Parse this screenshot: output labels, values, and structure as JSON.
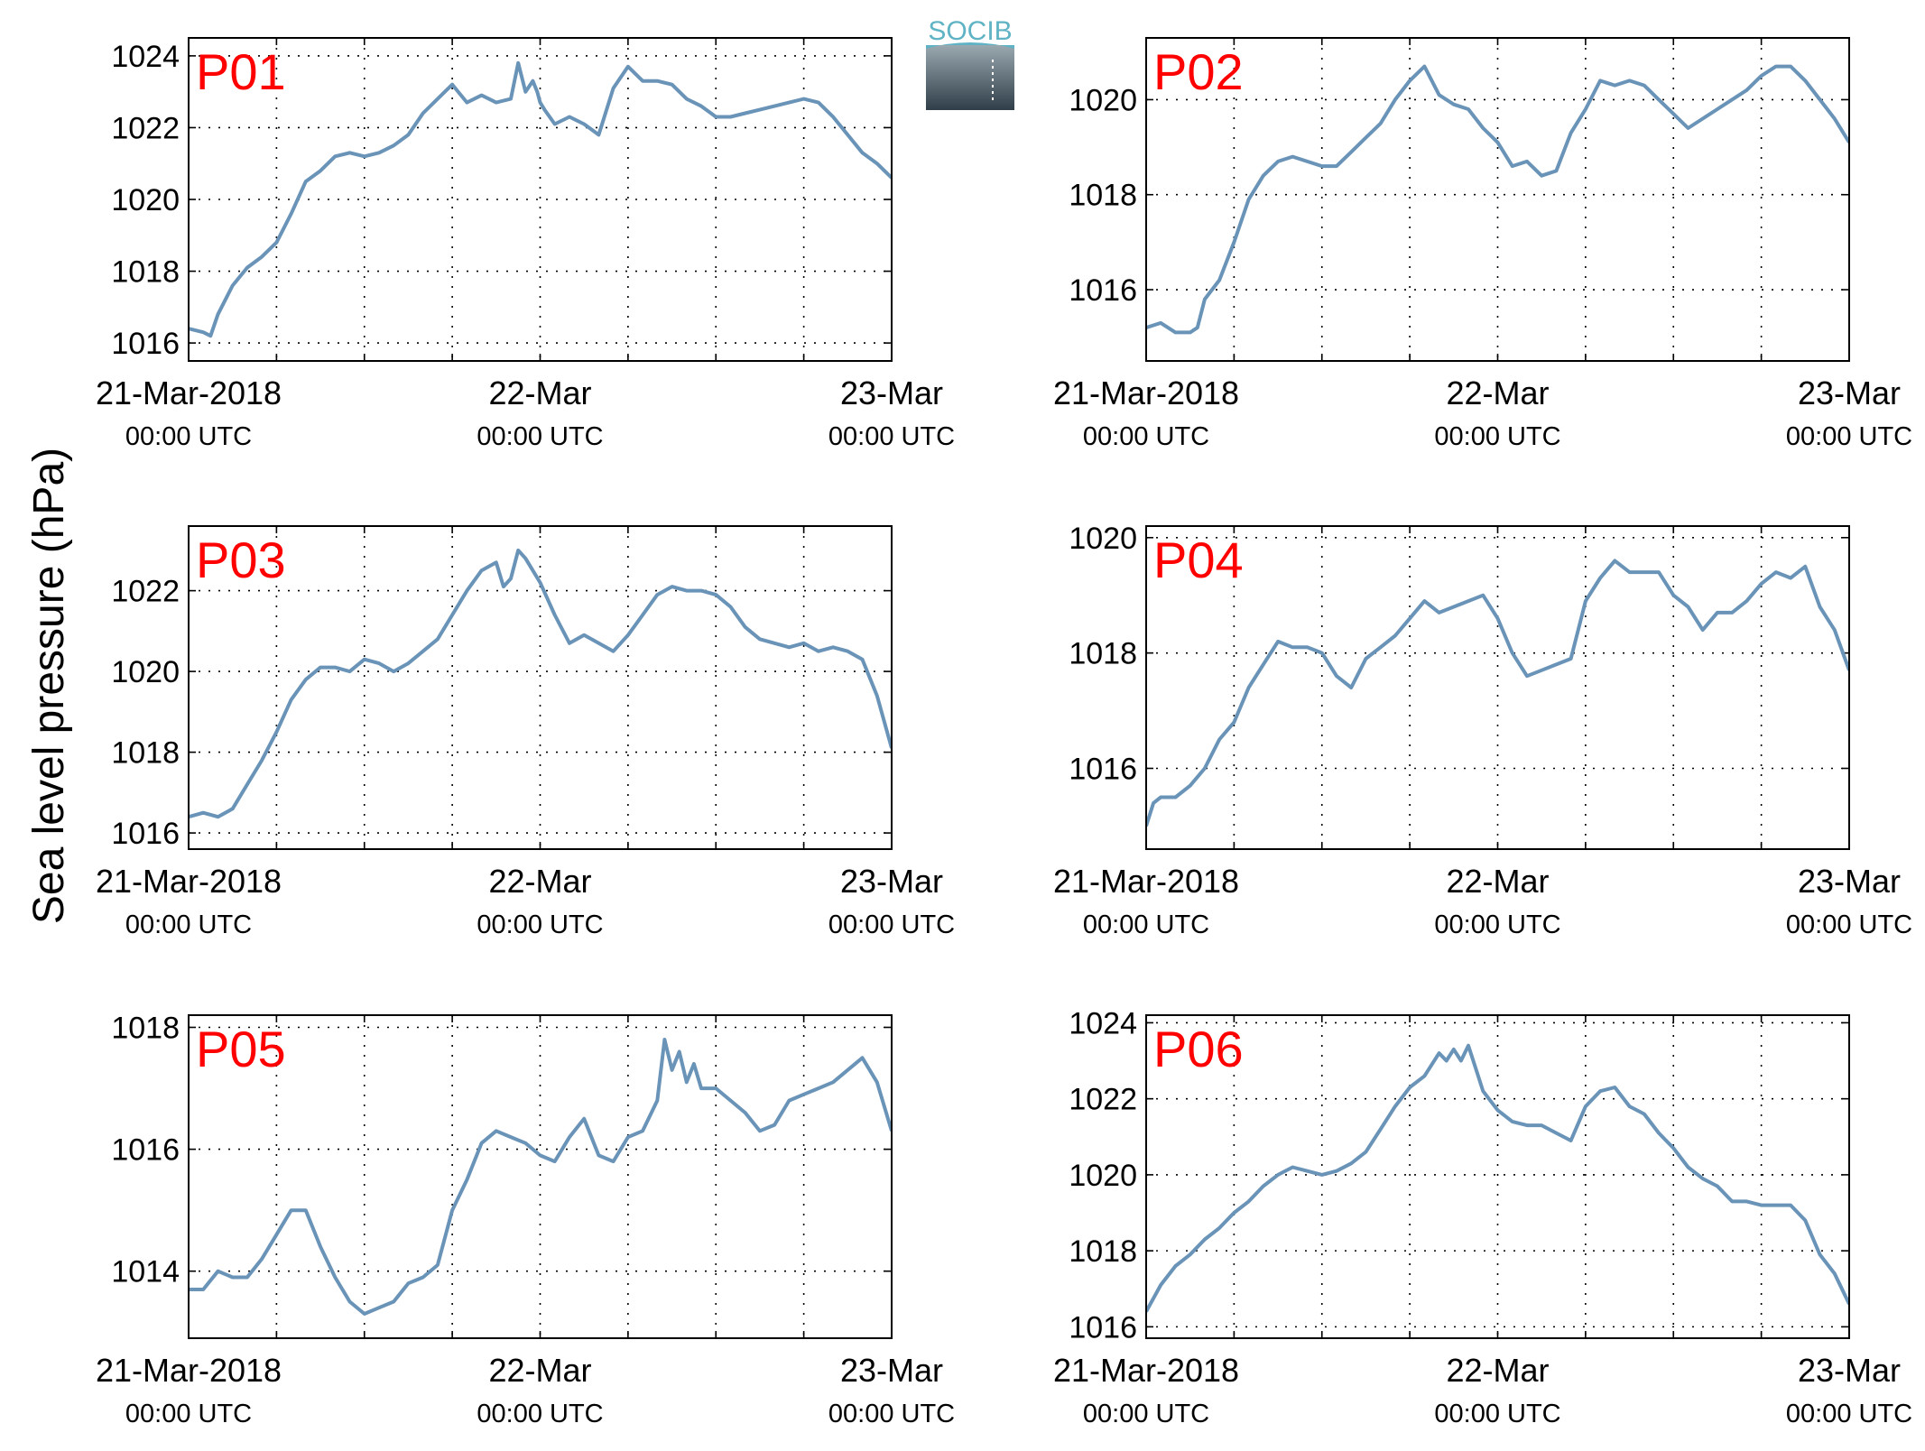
{
  "figure": {
    "ylabel": "Sea level pressure (hPa)",
    "logo_text": "SOCIB"
  },
  "colors": {
    "line": "#6a93b8",
    "panel_label": "#ff0000",
    "axis": "#000000",
    "grid": "#000000"
  },
  "chart_data": [
    {
      "type": "line",
      "name": "P01",
      "xlim": [
        0,
        48
      ],
      "ylim": [
        1015.5,
        1024.5
      ],
      "yticks": [
        1016,
        1018,
        1020,
        1022,
        1024
      ],
      "xticklabels": [
        {
          "t": 0,
          "top": "21-Mar-2018",
          "bottom": "00:00 UTC"
        },
        {
          "t": 24,
          "top": "22-Mar",
          "bottom": "00:00 UTC"
        },
        {
          "t": 48,
          "top": "23-Mar",
          "bottom": "00:00 UTC"
        }
      ],
      "grid": true,
      "x": [
        0,
        1,
        1.5,
        2,
        3,
        4,
        5,
        6,
        7,
        8,
        9,
        10,
        11,
        12,
        13,
        14,
        15,
        16,
        17,
        18,
        19,
        20,
        21,
        22,
        22.5,
        23,
        23.5,
        23.8,
        24,
        24.3,
        25,
        26,
        27,
        28,
        29,
        30,
        31,
        32,
        33,
        34,
        35,
        36,
        37,
        38,
        39,
        40,
        41,
        42,
        43,
        44,
        45,
        46,
        47,
        48
      ],
      "values": [
        1016.4,
        1016.3,
        1016.2,
        1016.8,
        1017.6,
        1018.1,
        1018.4,
        1018.8,
        1019.6,
        1020.5,
        1020.8,
        1021.2,
        1021.3,
        1021.2,
        1021.3,
        1021.5,
        1021.8,
        1022.4,
        1022.8,
        1023.2,
        1022.7,
        1022.9,
        1022.7,
        1022.8,
        1023.8,
        1023.0,
        1023.3,
        1023.0,
        1022.7,
        1022.5,
        1022.1,
        1022.3,
        1022.1,
        1021.8,
        1023.1,
        1023.7,
        1023.3,
        1023.3,
        1023.2,
        1022.8,
        1022.6,
        1022.3,
        1022.3,
        1022.4,
        1022.5,
        1022.6,
        1022.7,
        1022.8,
        1022.7,
        1022.3,
        1021.8,
        1021.3,
        1021.0,
        1020.6
      ]
    },
    {
      "type": "line",
      "name": "P02",
      "xlim": [
        0,
        48
      ],
      "ylim": [
        1014.5,
        1021.3
      ],
      "yticks": [
        1016,
        1018,
        1020
      ],
      "xticklabels": [
        {
          "t": 0,
          "top": "21-Mar-2018",
          "bottom": "00:00 UTC"
        },
        {
          "t": 24,
          "top": "22-Mar",
          "bottom": "00:00 UTC"
        },
        {
          "t": 48,
          "top": "23-Mar",
          "bottom": "00:00 UTC"
        }
      ],
      "grid": true,
      "x": [
        0,
        1,
        2,
        3,
        3.5,
        4,
        5,
        6,
        7,
        8,
        9,
        10,
        11,
        12,
        13,
        14,
        15,
        16,
        17,
        18,
        19,
        20,
        21,
        22,
        23,
        24,
        25,
        26,
        27,
        28,
        29,
        30,
        31,
        32,
        33,
        34,
        35,
        36,
        37,
        38,
        39,
        40,
        41,
        42,
        43,
        44,
        45,
        46,
        47,
        48
      ],
      "values": [
        1015.2,
        1015.3,
        1015.1,
        1015.1,
        1015.2,
        1015.8,
        1016.2,
        1017.0,
        1017.9,
        1018.4,
        1018.7,
        1018.8,
        1018.7,
        1018.6,
        1018.6,
        1018.9,
        1019.2,
        1019.5,
        1020.0,
        1020.4,
        1020.7,
        1020.1,
        1019.9,
        1019.8,
        1019.4,
        1019.1,
        1018.6,
        1018.7,
        1018.4,
        1018.5,
        1019.3,
        1019.8,
        1020.4,
        1020.3,
        1020.4,
        1020.3,
        1020.0,
        1019.7,
        1019.4,
        1019.6,
        1019.8,
        1020.0,
        1020.2,
        1020.5,
        1020.7,
        1020.7,
        1020.4,
        1020.0,
        1019.6,
        1019.1
      ]
    },
    {
      "type": "line",
      "name": "P03",
      "xlim": [
        0,
        48
      ],
      "ylim": [
        1015.6,
        1023.6
      ],
      "yticks": [
        1016,
        1018,
        1020,
        1022
      ],
      "xticklabels": [
        {
          "t": 0,
          "top": "21-Mar-2018",
          "bottom": "00:00 UTC"
        },
        {
          "t": 24,
          "top": "22-Mar",
          "bottom": "00:00 UTC"
        },
        {
          "t": 48,
          "top": "23-Mar",
          "bottom": "00:00 UTC"
        }
      ],
      "grid": true,
      "x": [
        0,
        1,
        2,
        3,
        4,
        5,
        6,
        7,
        8,
        9,
        10,
        11,
        12,
        13,
        14,
        15,
        16,
        17,
        18,
        19,
        20,
        21,
        21.5,
        22,
        22.5,
        23,
        24,
        25,
        26,
        27,
        28,
        29,
        30,
        31,
        32,
        33,
        34,
        35,
        36,
        37,
        38,
        39,
        40,
        41,
        42,
        43,
        44,
        45,
        46,
        47,
        48
      ],
      "values": [
        1016.4,
        1016.5,
        1016.4,
        1016.6,
        1017.2,
        1017.8,
        1018.5,
        1019.3,
        1019.8,
        1020.1,
        1020.1,
        1020.0,
        1020.3,
        1020.2,
        1020.0,
        1020.2,
        1020.5,
        1020.8,
        1021.4,
        1022.0,
        1022.5,
        1022.7,
        1022.1,
        1022.3,
        1023.0,
        1022.8,
        1022.2,
        1021.4,
        1020.7,
        1020.9,
        1020.7,
        1020.5,
        1020.9,
        1021.4,
        1021.9,
        1022.1,
        1022.0,
        1022.0,
        1021.9,
        1021.6,
        1021.1,
        1020.8,
        1020.7,
        1020.6,
        1020.7,
        1020.5,
        1020.6,
        1020.5,
        1020.3,
        1019.4,
        1018.1
      ]
    },
    {
      "type": "line",
      "name": "P04",
      "xlim": [
        0,
        48
      ],
      "ylim": [
        1014.6,
        1020.2
      ],
      "yticks": [
        1016,
        1018,
        1020
      ],
      "xticklabels": [
        {
          "t": 0,
          "top": "21-Mar-2018",
          "bottom": "00:00 UTC"
        },
        {
          "t": 24,
          "top": "22-Mar",
          "bottom": "00:00 UTC"
        },
        {
          "t": 48,
          "top": "23-Mar",
          "bottom": "00:00 UTC"
        }
      ],
      "grid": true,
      "x": [
        0,
        0.5,
        1,
        2,
        3,
        4,
        5,
        6,
        7,
        8,
        9,
        10,
        11,
        12,
        13,
        14,
        15,
        16,
        17,
        18,
        19,
        20,
        21,
        22,
        23,
        24,
        25,
        26,
        27,
        28,
        29,
        30,
        31,
        32,
        33,
        34,
        35,
        36,
        37,
        38,
        39,
        40,
        41,
        42,
        43,
        44,
        45,
        46,
        47,
        48
      ],
      "values": [
        1015.0,
        1015.4,
        1015.5,
        1015.5,
        1015.7,
        1016.0,
        1016.5,
        1016.8,
        1017.4,
        1017.8,
        1018.2,
        1018.1,
        1018.1,
        1018.0,
        1017.6,
        1017.4,
        1017.9,
        1018.1,
        1018.3,
        1018.6,
        1018.9,
        1018.7,
        1018.8,
        1018.9,
        1019.0,
        1018.6,
        1018.0,
        1017.6,
        1017.7,
        1017.8,
        1017.9,
        1018.9,
        1019.3,
        1019.6,
        1019.4,
        1019.4,
        1019.4,
        1019.0,
        1018.8,
        1018.4,
        1018.7,
        1018.7,
        1018.9,
        1019.2,
        1019.4,
        1019.3,
        1019.5,
        1018.8,
        1018.4,
        1017.7
      ]
    },
    {
      "type": "line",
      "name": "P05",
      "xlim": [
        0,
        48
      ],
      "ylim": [
        1012.9,
        1018.2
      ],
      "yticks": [
        1014,
        1016,
        1018
      ],
      "xticklabels": [
        {
          "t": 0,
          "top": "21-Mar-2018",
          "bottom": "00:00 UTC"
        },
        {
          "t": 24,
          "top": "22-Mar",
          "bottom": "00:00 UTC"
        },
        {
          "t": 48,
          "top": "23-Mar",
          "bottom": "00:00 UTC"
        }
      ],
      "grid": true,
      "x": [
        0,
        1,
        2,
        3,
        4,
        5,
        6,
        7,
        8,
        9,
        10,
        11,
        12,
        13,
        14,
        15,
        16,
        17,
        18,
        19,
        20,
        21,
        22,
        23,
        24,
        25,
        26,
        27,
        28,
        29,
        30,
        31,
        32,
        32.5,
        33,
        33.5,
        34,
        34.5,
        35,
        36,
        37,
        38,
        39,
        40,
        41,
        42,
        43,
        44,
        45,
        46,
        47,
        48
      ],
      "values": [
        1013.7,
        1013.7,
        1014.0,
        1013.9,
        1013.9,
        1014.2,
        1014.6,
        1015.0,
        1015.0,
        1014.4,
        1013.9,
        1013.5,
        1013.3,
        1013.4,
        1013.5,
        1013.8,
        1013.9,
        1014.1,
        1015.0,
        1015.5,
        1016.1,
        1016.3,
        1016.2,
        1016.1,
        1015.9,
        1015.8,
        1016.2,
        1016.5,
        1015.9,
        1015.8,
        1016.2,
        1016.3,
        1016.8,
        1017.8,
        1017.3,
        1017.6,
        1017.1,
        1017.4,
        1017.0,
        1017.0,
        1016.8,
        1016.6,
        1016.3,
        1016.4,
        1016.8,
        1016.9,
        1017.0,
        1017.1,
        1017.3,
        1017.5,
        1017.1,
        1016.3
      ]
    },
    {
      "type": "line",
      "name": "P06",
      "xlim": [
        0,
        48
      ],
      "ylim": [
        1015.7,
        1024.2
      ],
      "yticks": [
        1016,
        1018,
        1020,
        1022,
        1024
      ],
      "xticklabels": [
        {
          "t": 0,
          "top": "21-Mar-2018",
          "bottom": "00:00 UTC"
        },
        {
          "t": 24,
          "top": "22-Mar",
          "bottom": "00:00 UTC"
        },
        {
          "t": 48,
          "top": "23-Mar",
          "bottom": "00:00 UTC"
        }
      ],
      "grid": true,
      "x": [
        0,
        1,
        2,
        3,
        4,
        5,
        6,
        7,
        8,
        9,
        10,
        11,
        12,
        13,
        14,
        15,
        16,
        17,
        18,
        19,
        20,
        20.5,
        21,
        21.5,
        22,
        22.5,
        23,
        24,
        25,
        26,
        27,
        28,
        29,
        30,
        31,
        32,
        33,
        34,
        35,
        36,
        37,
        38,
        39,
        40,
        41,
        42,
        43,
        44,
        45,
        46,
        47,
        48
      ],
      "values": [
        1016.4,
        1017.1,
        1017.6,
        1017.9,
        1018.3,
        1018.6,
        1019.0,
        1019.3,
        1019.7,
        1020.0,
        1020.2,
        1020.1,
        1020.0,
        1020.1,
        1020.3,
        1020.6,
        1021.2,
        1021.8,
        1022.3,
        1022.6,
        1023.2,
        1023.0,
        1023.3,
        1023.0,
        1023.4,
        1022.8,
        1022.2,
        1021.7,
        1021.4,
        1021.3,
        1021.3,
        1021.1,
        1020.9,
        1021.8,
        1022.2,
        1022.3,
        1021.8,
        1021.6,
        1021.1,
        1020.7,
        1020.2,
        1019.9,
        1019.7,
        1019.3,
        1019.3,
        1019.2,
        1019.2,
        1019.2,
        1018.8,
        1017.9,
        1017.4,
        1016.6
      ]
    }
  ]
}
